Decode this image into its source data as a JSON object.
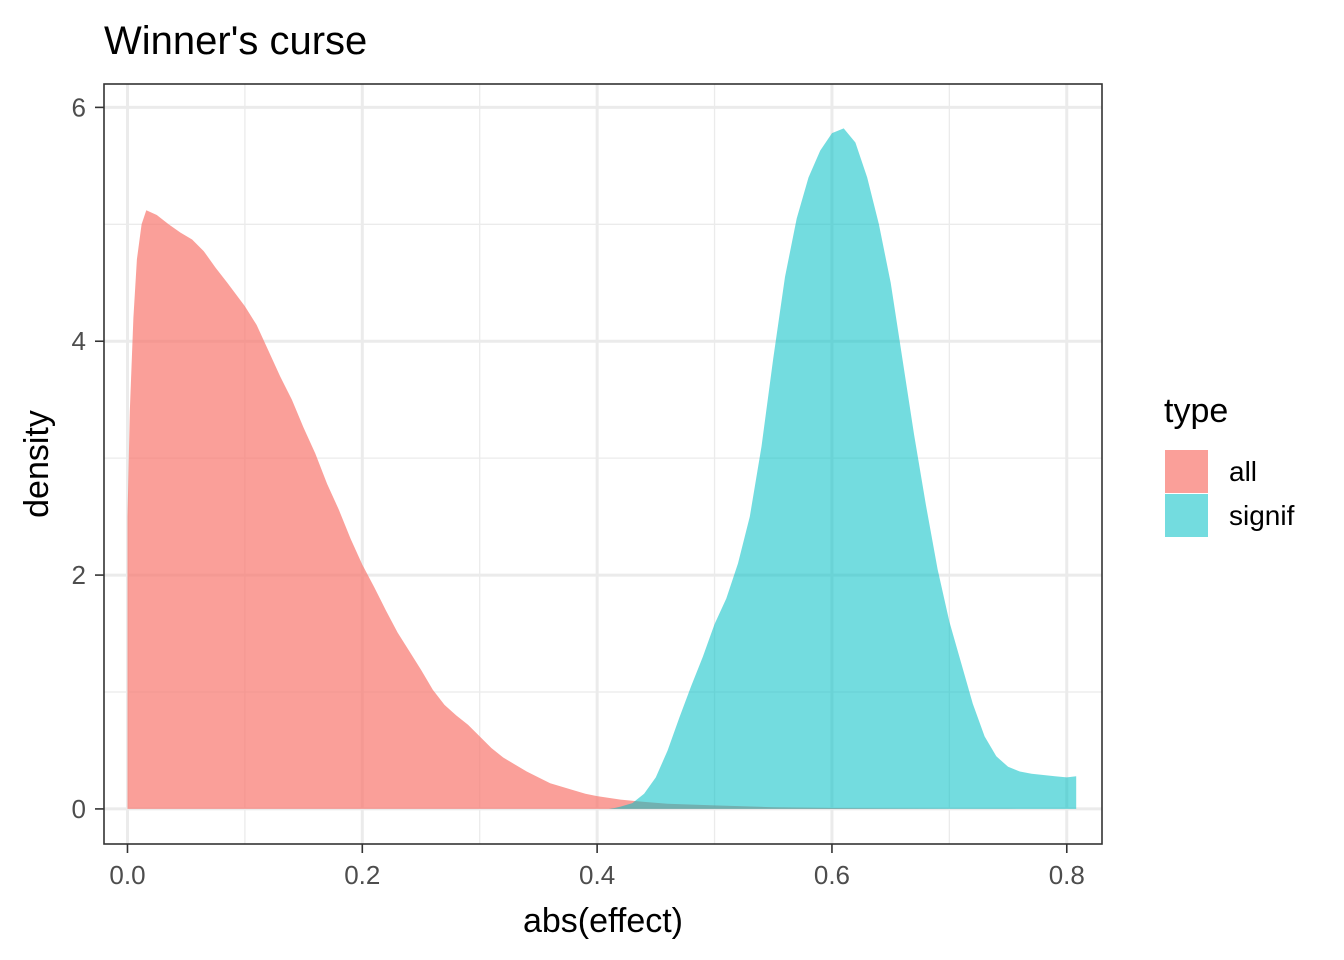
{
  "chart_data": {
    "type": "area",
    "title": "Winner's curse",
    "xlabel": "abs(effect)",
    "ylabel": "density",
    "xlim": [
      -0.02,
      0.83
    ],
    "ylim": [
      -0.3,
      6.2
    ],
    "x_ticks": [
      0.0,
      0.2,
      0.4,
      0.6,
      0.8
    ],
    "x_tick_labels": [
      "0.0",
      "0.2",
      "0.4",
      "0.6",
      "0.8"
    ],
    "y_ticks": [
      0,
      2,
      4,
      6
    ],
    "y_tick_labels": [
      "0",
      "2",
      "4",
      "6"
    ],
    "grid": true,
    "legend": {
      "title": "type",
      "position": "right"
    },
    "series": [
      {
        "name": "all",
        "color": "#F8766D",
        "opacity": 0.7,
        "points": [
          [
            0.0,
            0.0
          ],
          [
            0.0,
            2.5
          ],
          [
            0.002,
            3.4
          ],
          [
            0.005,
            4.2
          ],
          [
            0.008,
            4.7
          ],
          [
            0.012,
            5.0
          ],
          [
            0.016,
            5.12
          ],
          [
            0.025,
            5.08
          ],
          [
            0.035,
            5.0
          ],
          [
            0.045,
            4.93
          ],
          [
            0.055,
            4.87
          ],
          [
            0.065,
            4.77
          ],
          [
            0.075,
            4.63
          ],
          [
            0.085,
            4.5
          ],
          [
            0.1,
            4.3
          ],
          [
            0.11,
            4.14
          ],
          [
            0.12,
            3.92
          ],
          [
            0.13,
            3.7
          ],
          [
            0.14,
            3.5
          ],
          [
            0.15,
            3.26
          ],
          [
            0.16,
            3.04
          ],
          [
            0.17,
            2.78
          ],
          [
            0.18,
            2.56
          ],
          [
            0.19,
            2.31
          ],
          [
            0.2,
            2.09
          ],
          [
            0.21,
            1.9
          ],
          [
            0.22,
            1.7
          ],
          [
            0.23,
            1.51
          ],
          [
            0.24,
            1.35
          ],
          [
            0.25,
            1.19
          ],
          [
            0.26,
            1.02
          ],
          [
            0.27,
            0.89
          ],
          [
            0.28,
            0.8
          ],
          [
            0.29,
            0.72
          ],
          [
            0.3,
            0.62
          ],
          [
            0.31,
            0.52
          ],
          [
            0.32,
            0.44
          ],
          [
            0.33,
            0.38
          ],
          [
            0.34,
            0.32
          ],
          [
            0.35,
            0.27
          ],
          [
            0.36,
            0.22
          ],
          [
            0.37,
            0.19
          ],
          [
            0.38,
            0.16
          ],
          [
            0.39,
            0.13
          ],
          [
            0.4,
            0.11
          ],
          [
            0.42,
            0.08
          ],
          [
            0.44,
            0.06
          ],
          [
            0.46,
            0.045
          ],
          [
            0.5,
            0.03
          ],
          [
            0.55,
            0.015
          ],
          [
            0.6,
            0.008
          ],
          [
            0.65,
            0.004
          ],
          [
            0.7,
            0.002
          ],
          [
            0.75,
            0.001
          ],
          [
            0.8,
            0.0005
          ],
          [
            0.808,
            0.0
          ]
        ]
      },
      {
        "name": "signif",
        "color": "#00BFC4",
        "opacity": 0.55,
        "points": [
          [
            0.41,
            0.0
          ],
          [
            0.415,
            0.008
          ],
          [
            0.42,
            0.02
          ],
          [
            0.43,
            0.05
          ],
          [
            0.44,
            0.13
          ],
          [
            0.45,
            0.27
          ],
          [
            0.46,
            0.5
          ],
          [
            0.47,
            0.78
          ],
          [
            0.48,
            1.05
          ],
          [
            0.49,
            1.3
          ],
          [
            0.5,
            1.58
          ],
          [
            0.51,
            1.8
          ],
          [
            0.52,
            2.1
          ],
          [
            0.53,
            2.5
          ],
          [
            0.54,
            3.1
          ],
          [
            0.55,
            3.85
          ],
          [
            0.56,
            4.55
          ],
          [
            0.57,
            5.05
          ],
          [
            0.58,
            5.4
          ],
          [
            0.59,
            5.63
          ],
          [
            0.6,
            5.78
          ],
          [
            0.61,
            5.82
          ],
          [
            0.62,
            5.7
          ],
          [
            0.63,
            5.4
          ],
          [
            0.64,
            5.0
          ],
          [
            0.65,
            4.5
          ],
          [
            0.66,
            3.85
          ],
          [
            0.67,
            3.2
          ],
          [
            0.68,
            2.6
          ],
          [
            0.69,
            2.05
          ],
          [
            0.7,
            1.6
          ],
          [
            0.71,
            1.25
          ],
          [
            0.72,
            0.9
          ],
          [
            0.73,
            0.62
          ],
          [
            0.74,
            0.45
          ],
          [
            0.75,
            0.36
          ],
          [
            0.76,
            0.32
          ],
          [
            0.77,
            0.3
          ],
          [
            0.78,
            0.29
          ],
          [
            0.79,
            0.28
          ],
          [
            0.8,
            0.27
          ],
          [
            0.808,
            0.28
          ],
          [
            0.808,
            0.0
          ]
        ]
      }
    ]
  }
}
